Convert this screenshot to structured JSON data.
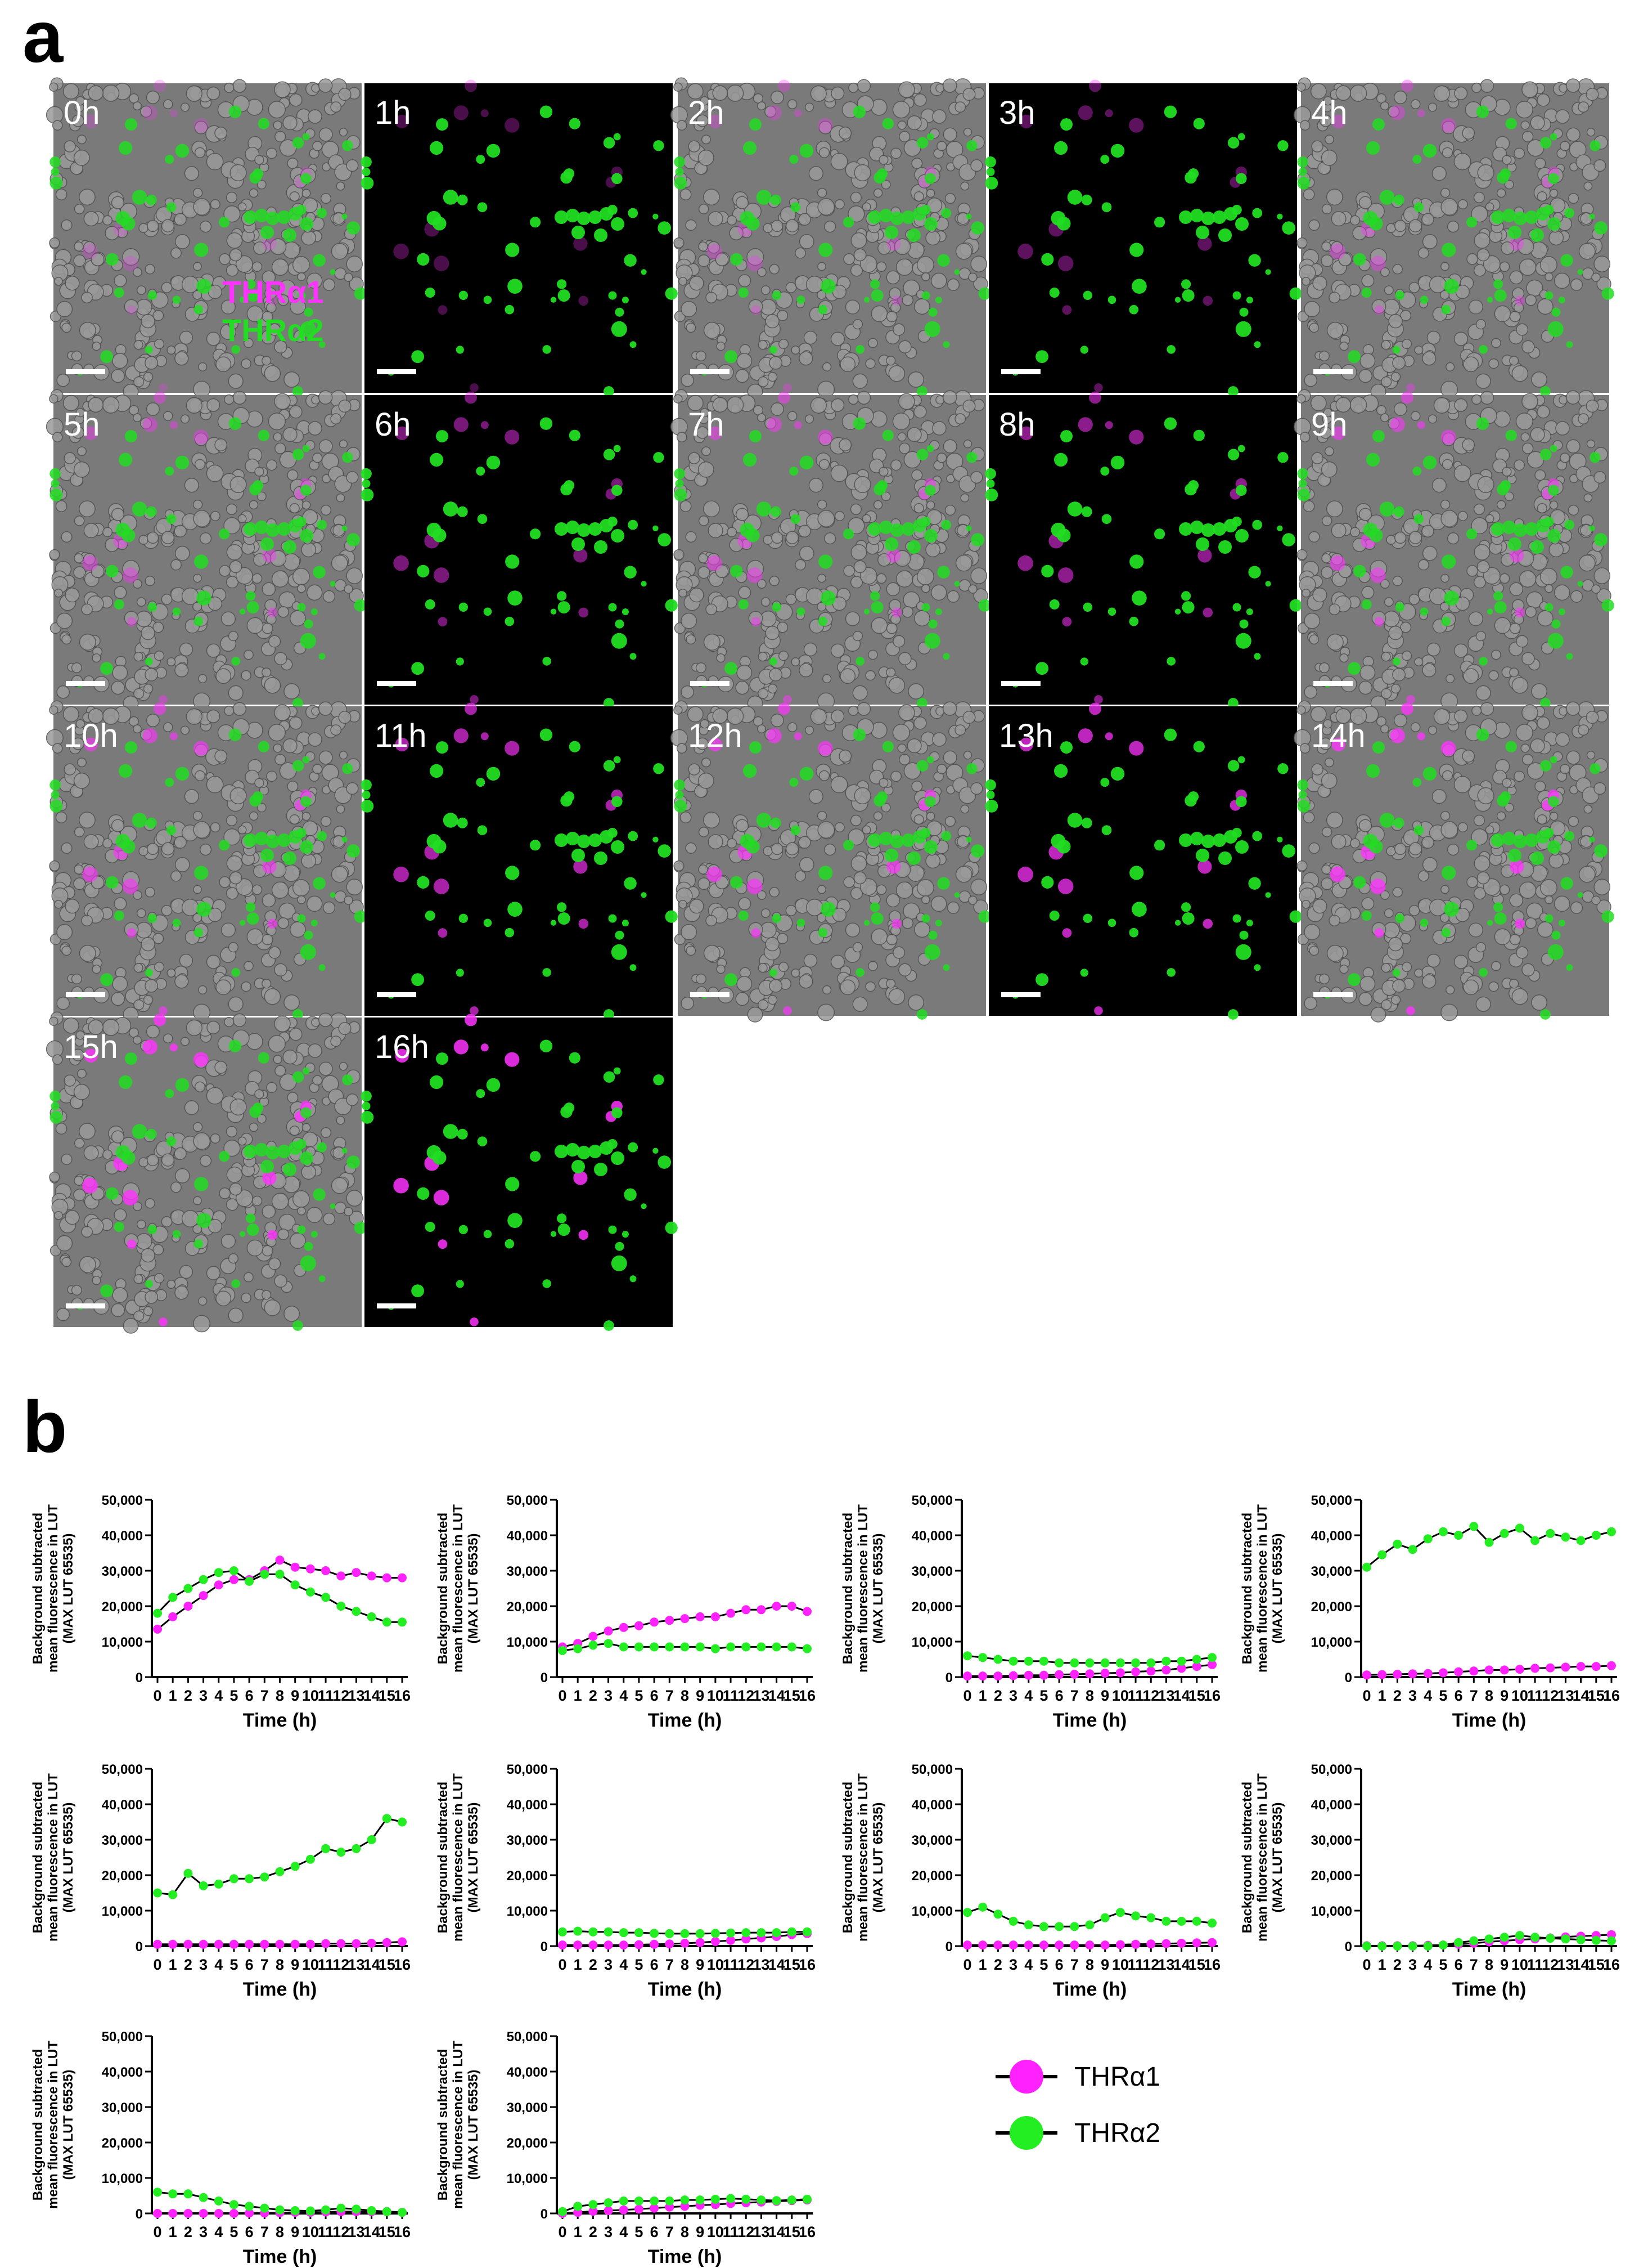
{
  "panel_a": {
    "letter": "a",
    "channel_labels": [
      "THRα1",
      "THRα2"
    ],
    "tiles": [
      {
        "label": "0h",
        "mode": "merge"
      },
      {
        "label": "1h",
        "mode": "fluor"
      },
      {
        "label": "2h",
        "mode": "merge"
      },
      {
        "label": "3h",
        "mode": "fluor"
      },
      {
        "label": "4h",
        "mode": "merge"
      },
      {
        "label": "5h",
        "mode": "merge"
      },
      {
        "label": "6h",
        "mode": "fluor"
      },
      {
        "label": "7h",
        "mode": "merge"
      },
      {
        "label": "8h",
        "mode": "fluor"
      },
      {
        "label": "9h",
        "mode": "merge"
      },
      {
        "label": "10h",
        "mode": "merge"
      },
      {
        "label": "11h",
        "mode": "fluor"
      },
      {
        "label": "12h",
        "mode": "merge"
      },
      {
        "label": "13h",
        "mode": "fluor"
      },
      {
        "label": "14h",
        "mode": "merge"
      },
      {
        "label": "15h",
        "mode": "merge"
      },
      {
        "label": "16h",
        "mode": "fluor"
      }
    ],
    "colors": {
      "thra1": "#ff33ff",
      "thra2": "#22dd22",
      "merge_bg": "#7a7a7a",
      "fluor_bg": "#000000"
    }
  },
  "panel_b": {
    "letter": "b",
    "legend": [
      {
        "label": "THRα1",
        "color": "#ff22ff"
      },
      {
        "label": "THRα2",
        "color": "#22ee22"
      }
    ]
  },
  "chart_data": [
    {
      "type": "line",
      "xlabel": "Time (h)",
      "ylabel": [
        "Background subtracted",
        "mean fluorescence in LUT",
        "(MAX LUT 65535)"
      ],
      "x": [
        0,
        1,
        2,
        3,
        4,
        5,
        6,
        7,
        8,
        9,
        10,
        11,
        12,
        13,
        14,
        15,
        16
      ],
      "ylim": [
        0,
        50000
      ],
      "yticks": [
        "0",
        "10,000",
        "20,000",
        "30,000",
        "40,000",
        "50,000"
      ],
      "series": [
        {
          "name": "THRα1",
          "color": "#ff22ff",
          "values": [
            13500,
            17000,
            20000,
            23000,
            26000,
            27500,
            27500,
            30000,
            33000,
            31000,
            30500,
            30000,
            28500,
            29500,
            28500,
            28000,
            28000
          ]
        },
        {
          "name": "THRα2",
          "color": "#22ee22",
          "values": [
            18000,
            22500,
            25000,
            27500,
            29500,
            30000,
            27000,
            29000,
            29000,
            26000,
            24000,
            22500,
            20000,
            18500,
            17000,
            15500,
            15500
          ]
        }
      ]
    },
    {
      "type": "line",
      "xlabel": "Time (h)",
      "ylabel": [
        "Background subtracted",
        "mean fluorescence in LUT",
        "(MAX LUT 65535)"
      ],
      "x": [
        0,
        1,
        2,
        3,
        4,
        5,
        6,
        7,
        8,
        9,
        10,
        11,
        12,
        13,
        14,
        15,
        16
      ],
      "ylim": [
        0,
        50000
      ],
      "yticks": [
        "0",
        "10,000",
        "20,000",
        "30,000",
        "40,000",
        "50,000"
      ],
      "series": [
        {
          "name": "THRα1",
          "color": "#ff22ff",
          "values": [
            8500,
            9500,
            11500,
            13000,
            14000,
            14500,
            15500,
            16000,
            16500,
            17000,
            17000,
            18000,
            19000,
            19000,
            20000,
            20000,
            18500
          ]
        },
        {
          "name": "THRα2",
          "color": "#22ee22",
          "values": [
            7500,
            8000,
            9000,
            9500,
            8500,
            8500,
            8500,
            8500,
            8500,
            8500,
            8000,
            8500,
            8500,
            8500,
            8500,
            8500,
            8000
          ]
        }
      ]
    },
    {
      "type": "line",
      "xlabel": "Time (h)",
      "ylabel": [
        "Background subtracted",
        "mean fluorescence in LUT",
        "(MAX LUT 65535)"
      ],
      "x": [
        0,
        1,
        2,
        3,
        4,
        5,
        6,
        7,
        8,
        9,
        10,
        11,
        12,
        13,
        14,
        15,
        16
      ],
      "ylim": [
        0,
        50000
      ],
      "yticks": [
        "0",
        "10,000",
        "20,000",
        "30,000",
        "40,000",
        "50,000"
      ],
      "series": [
        {
          "name": "THRα1",
          "color": "#ff22ff",
          "values": [
            300,
            300,
            300,
            400,
            500,
            500,
            700,
            800,
            900,
            1100,
            1200,
            1500,
            1700,
            2000,
            2500,
            3000,
            3500
          ]
        },
        {
          "name": "THRα2",
          "color": "#22ee22",
          "values": [
            6000,
            5500,
            5000,
            4500,
            4500,
            4500,
            4000,
            4000,
            4000,
            4000,
            4000,
            4000,
            4000,
            4500,
            4500,
            5000,
            5500
          ]
        }
      ]
    },
    {
      "type": "line",
      "xlabel": "Time (h)",
      "ylabel": [
        "Background subtracted",
        "mean fluorescence in LUT",
        "(MAX LUT 65535)"
      ],
      "x": [
        0,
        1,
        2,
        3,
        4,
        5,
        6,
        7,
        8,
        9,
        10,
        11,
        12,
        13,
        14,
        15,
        16
      ],
      "ylim": [
        0,
        50000
      ],
      "yticks": [
        "0",
        "10,000",
        "20,000",
        "30,000",
        "40,000",
        "50,000"
      ],
      "series": [
        {
          "name": "THRα1",
          "color": "#ff22ff",
          "values": [
            600,
            700,
            800,
            900,
            1000,
            1200,
            1500,
            1700,
            2000,
            2000,
            2200,
            2500,
            2600,
            2800,
            3000,
            3000,
            3200
          ]
        },
        {
          "name": "THRα2",
          "color": "#22ee22",
          "values": [
            31000,
            34500,
            37500,
            36000,
            39000,
            41000,
            40000,
            42500,
            38000,
            40500,
            42000,
            38500,
            40500,
            39500,
            38500,
            40000,
            41000
          ]
        }
      ]
    },
    {
      "type": "line",
      "xlabel": "Time (h)",
      "ylabel": [
        "Background subtracted",
        "mean fluorescence in LUT",
        "(MAX LUT 65535)"
      ],
      "x": [
        0,
        1,
        2,
        3,
        4,
        5,
        6,
        7,
        8,
        9,
        10,
        11,
        12,
        13,
        14,
        15,
        16
      ],
      "ylim": [
        0,
        50000
      ],
      "yticks": [
        "0",
        "10,000",
        "20,000",
        "30,000",
        "40,000",
        "50,000"
      ],
      "series": [
        {
          "name": "THRα1",
          "color": "#ff22ff",
          "values": [
            500,
            500,
            500,
            500,
            500,
            500,
            500,
            500,
            500,
            500,
            500,
            700,
            700,
            700,
            800,
            1000,
            1200
          ]
        },
        {
          "name": "THRα2",
          "color": "#22ee22",
          "values": [
            15000,
            14500,
            20500,
            17000,
            17500,
            19000,
            19000,
            19500,
            21000,
            22500,
            24500,
            27500,
            26500,
            27500,
            30000,
            36000,
            35000
          ]
        }
      ]
    },
    {
      "type": "line",
      "xlabel": "Time (h)",
      "ylabel": [
        "Background subtracted",
        "mean fluorescence in LUT",
        "(MAX LUT 65535)"
      ],
      "x": [
        0,
        1,
        2,
        3,
        4,
        5,
        6,
        7,
        8,
        9,
        10,
        11,
        12,
        13,
        14,
        15,
        16
      ],
      "ylim": [
        0,
        50000
      ],
      "yticks": [
        "0",
        "10,000",
        "20,000",
        "30,000",
        "40,000",
        "50,000"
      ],
      "series": [
        {
          "name": "THRα1",
          "color": "#ff22ff",
          "values": [
            300,
            300,
            300,
            300,
            300,
            400,
            500,
            600,
            800,
            1000,
            1300,
            1600,
            2000,
            2300,
            2700,
            3200,
            3500
          ]
        },
        {
          "name": "THRα2",
          "color": "#22ee22",
          "values": [
            4000,
            4200,
            4000,
            4000,
            3800,
            3800,
            3600,
            3500,
            3500,
            3500,
            3600,
            3700,
            3800,
            3800,
            3800,
            4000,
            4000
          ]
        }
      ]
    },
    {
      "type": "line",
      "xlabel": "Time (h)",
      "ylabel": [
        "Background subtracted",
        "mean fluorescence in LUT",
        "(MAX LUT 65535)"
      ],
      "x": [
        0,
        1,
        2,
        3,
        4,
        5,
        6,
        7,
        8,
        9,
        10,
        11,
        12,
        13,
        14,
        15,
        16
      ],
      "ylim": [
        0,
        50000
      ],
      "yticks": [
        "0",
        "10,000",
        "20,000",
        "30,000",
        "40,000",
        "50,000"
      ],
      "series": [
        {
          "name": "THRα1",
          "color": "#ff22ff",
          "values": [
            300,
            300,
            300,
            300,
            300,
            300,
            300,
            300,
            300,
            300,
            400,
            500,
            600,
            700,
            800,
            900,
            1000
          ]
        },
        {
          "name": "THRα2",
          "color": "#22ee22",
          "values": [
            9500,
            11000,
            9000,
            7000,
            6000,
            5500,
            5500,
            5500,
            6000,
            8000,
            9500,
            8500,
            8000,
            7000,
            7000,
            7000,
            6500
          ]
        }
      ]
    },
    {
      "type": "line",
      "xlabel": "Time (h)",
      "ylabel": [
        "Background subtracted",
        "mean fluorescence in LUT",
        "(MAX LUT 65535)"
      ],
      "x": [
        0,
        1,
        2,
        3,
        4,
        5,
        6,
        7,
        8,
        9,
        10,
        11,
        12,
        13,
        14,
        15,
        16
      ],
      "ylim": [
        0,
        50000
      ],
      "yticks": [
        "0",
        "10,000",
        "20,000",
        "30,000",
        "40,000",
        "50,000"
      ],
      "series": [
        {
          "name": "THRα1",
          "color": "#ff22ff",
          "values": [
            100,
            100,
            100,
            100,
            200,
            300,
            500,
            800,
            1200,
            1500,
            1800,
            2000,
            2300,
            2600,
            2800,
            3000,
            3200
          ]
        },
        {
          "name": "THRα2",
          "color": "#22ee22",
          "values": [
            0,
            0,
            0,
            0,
            0,
            300,
            1000,
            1500,
            2000,
            2500,
            3000,
            2500,
            2200,
            2000,
            1800,
            1600,
            1500
          ]
        }
      ]
    },
    {
      "type": "line",
      "xlabel": "Time (h)",
      "ylabel": [
        "Background subtracted",
        "mean fluorescence in LUT",
        "(MAX LUT 65535)"
      ],
      "x": [
        0,
        1,
        2,
        3,
        4,
        5,
        6,
        7,
        8,
        9,
        10,
        11,
        12,
        13,
        14,
        15,
        16
      ],
      "ylim": [
        0,
        50000
      ],
      "yticks": [
        "0",
        "10,000",
        "20,000",
        "30,000",
        "40,000",
        "50,000"
      ],
      "series": [
        {
          "name": "THRα1",
          "color": "#ff22ff",
          "values": [
            0,
            0,
            0,
            0,
            0,
            0,
            100,
            100,
            200,
            300,
            300,
            400,
            500,
            500,
            500,
            500,
            300
          ]
        },
        {
          "name": "THRα2",
          "color": "#22ee22",
          "values": [
            6000,
            5500,
            5500,
            4500,
            3500,
            2500,
            2000,
            1500,
            1000,
            800,
            700,
            1000,
            1500,
            1200,
            800,
            500,
            300
          ]
        }
      ]
    },
    {
      "type": "line",
      "xlabel": "Time (h)",
      "ylabel": [
        "Background subtracted",
        "mean fluorescence in LUT",
        "(MAX LUT 65535)"
      ],
      "x": [
        0,
        1,
        2,
        3,
        4,
        5,
        6,
        7,
        8,
        9,
        10,
        11,
        12,
        13,
        14,
        15,
        16
      ],
      "ylim": [
        0,
        50000
      ],
      "yticks": [
        "0",
        "10,000",
        "20,000",
        "30,000",
        "40,000",
        "50,000"
      ],
      "series": [
        {
          "name": "THRα1",
          "color": "#ff22ff",
          "values": [
            0,
            300,
            600,
            800,
            1000,
            1200,
            1500,
            1800,
            2000,
            2300,
            2500,
            2800,
            3000,
            3200,
            3400,
            3600,
            3800
          ]
        },
        {
          "name": "THRα2",
          "color": "#22ee22",
          "values": [
            500,
            2000,
            2500,
            3000,
            3500,
            3500,
            3500,
            3500,
            3800,
            3800,
            4000,
            4200,
            4000,
            3800,
            3600,
            3800,
            4000
          ]
        }
      ]
    }
  ]
}
